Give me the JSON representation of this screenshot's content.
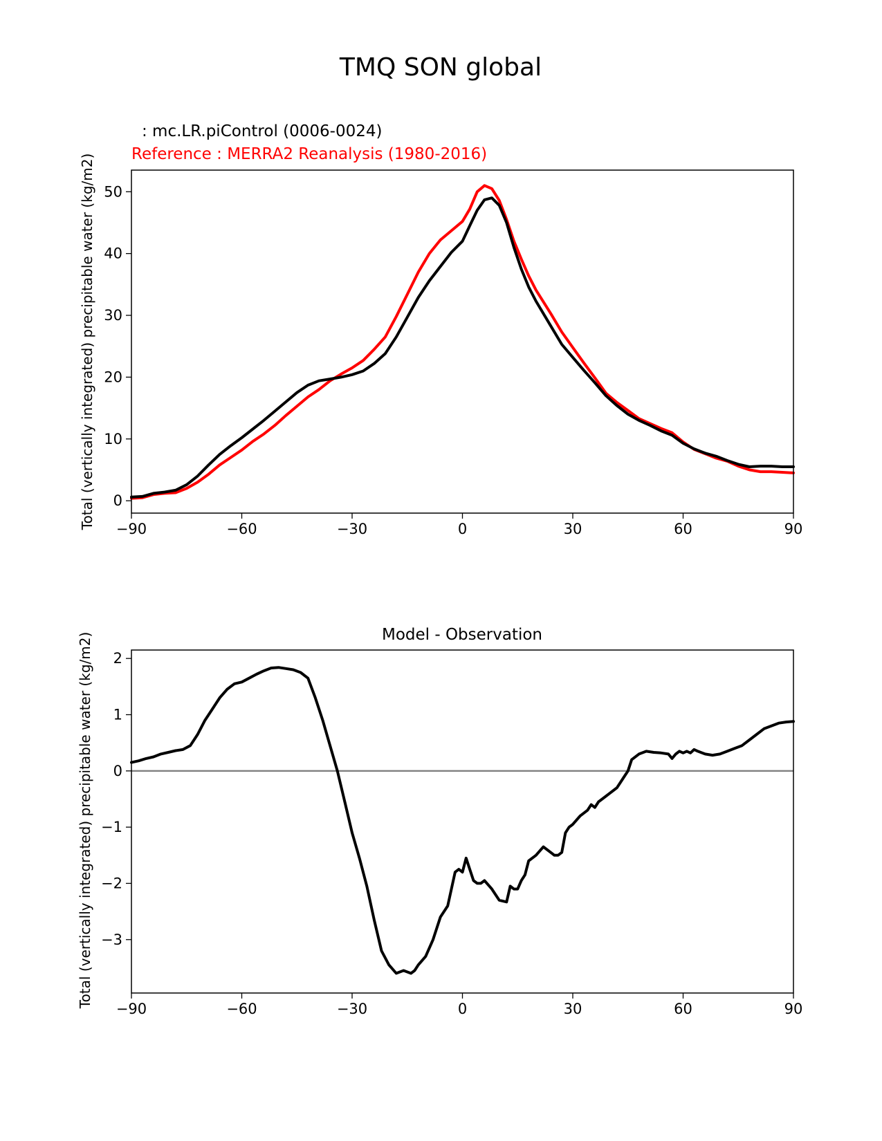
{
  "figure": {
    "suptitle": "TMQ SON global"
  },
  "chart_data": [
    {
      "type": "line",
      "title": "",
      "legend": [
        {
          "text": ": mc.LR.piControl (0006-0024)",
          "color": "#000000"
        },
        {
          "text": "Reference : MERRA2 Reanalysis (1980-2016)",
          "color": "#ff0000"
        }
      ],
      "xlabel": "",
      "ylabel": "Total (vertically integrated) precipitable water (kg/m2)",
      "xlim": [
        -90,
        90
      ],
      "ylim": [
        -2,
        53.5
      ],
      "xticks": [
        -90,
        -60,
        -30,
        0,
        30,
        60,
        90
      ],
      "xticklabels": [
        "−90",
        "−60",
        "−30",
        "0",
        "30",
        "60",
        "90"
      ],
      "yticks": [
        0,
        10,
        20,
        30,
        40,
        50
      ],
      "yticklabels": [
        "0",
        "10",
        "20",
        "30",
        "40",
        "50"
      ],
      "series": [
        {
          "name": "mc.LR.piControl (0006-0024)",
          "color": "#000000",
          "x": [
            -90,
            -87,
            -84,
            -81,
            -78,
            -75,
            -72,
            -69,
            -66,
            -63,
            -60,
            -57,
            -54,
            -51,
            -48,
            -45,
            -42,
            -39,
            -36,
            -33,
            -30,
            -27,
            -24,
            -21,
            -18,
            -15,
            -12,
            -9,
            -6,
            -3,
            0,
            2,
            4,
            6,
            8,
            10,
            12,
            14,
            16,
            18,
            20,
            24,
            27,
            30,
            33,
            36,
            39,
            42,
            45,
            48,
            51,
            54,
            57,
            60,
            63,
            66,
            69,
            72,
            75,
            78,
            81,
            84,
            87,
            90
          ],
          "y": [
            0.6,
            0.7,
            1.2,
            1.4,
            1.7,
            2.6,
            4.0,
            5.8,
            7.5,
            8.9,
            10.2,
            11.6,
            13.0,
            14.5,
            16.0,
            17.5,
            18.7,
            19.4,
            19.7,
            20.0,
            20.4,
            21.0,
            22.2,
            23.8,
            26.5,
            29.7,
            32.9,
            35.6,
            37.9,
            40.2,
            42.0,
            44.5,
            47.0,
            48.7,
            49.0,
            47.8,
            45.0,
            41.0,
            37.5,
            34.6,
            32.3,
            28.3,
            25.3,
            23.2,
            21.1,
            19.1,
            17.0,
            15.4,
            14.0,
            13.0,
            12.2,
            11.3,
            10.6,
            9.3,
            8.4,
            7.7,
            7.2,
            6.5,
            5.9,
            5.5,
            5.6,
            5.6,
            5.5,
            5.5
          ]
        },
        {
          "name": "Reference : MERRA2 Reanalysis (1980-2016)",
          "color": "#ff0000",
          "x": [
            -90,
            -87,
            -84,
            -81,
            -78,
            -75,
            -72,
            -69,
            -66,
            -63,
            -60,
            -57,
            -54,
            -51,
            -48,
            -45,
            -42,
            -39,
            -36,
            -33,
            -30,
            -27,
            -24,
            -21,
            -18,
            -15,
            -12,
            -9,
            -6,
            -3,
            0,
            2,
            4,
            6,
            8,
            10,
            12,
            14,
            16,
            18,
            20,
            24,
            27,
            30,
            33,
            36,
            39,
            42,
            45,
            48,
            51,
            54,
            57,
            60,
            63,
            66,
            69,
            72,
            75,
            78,
            81,
            84,
            87,
            90
          ],
          "y": [
            0.4,
            0.5,
            1.0,
            1.2,
            1.3,
            2.0,
            3.0,
            4.3,
            5.8,
            7.0,
            8.2,
            9.6,
            10.8,
            12.2,
            13.8,
            15.3,
            16.8,
            18.0,
            19.4,
            20.5,
            21.5,
            22.7,
            24.5,
            26.5,
            29.8,
            33.4,
            37.0,
            40.0,
            42.2,
            43.7,
            45.2,
            47.2,
            50.0,
            51.0,
            50.5,
            48.6,
            45.5,
            42.0,
            39.1,
            36.4,
            34.1,
            30.3,
            27.3,
            24.8,
            22.3,
            19.9,
            17.4,
            15.9,
            14.6,
            13.3,
            12.5,
            11.7,
            11.0,
            9.5,
            8.3,
            7.6,
            6.9,
            6.4,
            5.6,
            5.0,
            4.7,
            4.7,
            4.6,
            4.5
          ]
        }
      ]
    },
    {
      "type": "line",
      "title": "Model - Observation",
      "xlabel": "",
      "ylabel": "Total (vertically integrated) precipitable water (kg/m2)",
      "xlim": [
        -90,
        90
      ],
      "ylim": [
        -3.95,
        2.15
      ],
      "xticks": [
        -90,
        -60,
        -30,
        0,
        30,
        60,
        90
      ],
      "xticklabels": [
        "−90",
        "−60",
        "−30",
        "0",
        "30",
        "60",
        "90"
      ],
      "yticks": [
        -3,
        -2,
        -1,
        0,
        1,
        2
      ],
      "yticklabels": [
        "−3",
        "−2",
        "−1",
        "0",
        "1",
        "2"
      ],
      "reference_line": {
        "y": 0,
        "color": "#808080"
      },
      "series": [
        {
          "name": "Model - Observation",
          "color": "#000000",
          "x": [
            -90,
            -88,
            -86,
            -84,
            -82,
            -80,
            -78,
            -76,
            -74,
            -72,
            -70,
            -68,
            -66,
            -64,
            -62,
            -60,
            -58,
            -56,
            -54,
            -52,
            -50,
            -48,
            -46,
            -44,
            -42,
            -40,
            -38,
            -36,
            -34,
            -32,
            -30,
            -28,
            -26,
            -24,
            -22,
            -20,
            -18,
            -16,
            -14,
            -13,
            -12,
            -10,
            -8,
            -6,
            -4,
            -2,
            -1,
            0,
            1,
            2,
            3,
            4,
            5,
            6,
            8,
            10,
            12,
            13,
            14,
            15,
            16,
            17,
            18,
            20,
            22,
            24,
            25,
            26,
            27,
            28,
            29,
            30,
            32,
            34,
            35,
            36,
            37,
            38,
            39,
            40,
            42,
            43,
            44,
            45,
            46,
            48,
            50,
            52,
            54,
            56,
            57,
            58,
            59,
            60,
            61,
            62,
            63,
            64,
            66,
            68,
            70,
            72,
            74,
            76,
            78,
            80,
            82,
            84,
            86,
            88,
            90
          ],
          "y": [
            0.15,
            0.18,
            0.22,
            0.25,
            0.3,
            0.33,
            0.36,
            0.38,
            0.45,
            0.65,
            0.9,
            1.1,
            1.3,
            1.45,
            1.55,
            1.58,
            1.65,
            1.72,
            1.78,
            1.83,
            1.84,
            1.82,
            1.8,
            1.75,
            1.65,
            1.3,
            0.9,
            0.45,
            0.0,
            -0.55,
            -1.1,
            -1.55,
            -2.05,
            -2.65,
            -3.2,
            -3.45,
            -3.6,
            -3.55,
            -3.6,
            -3.55,
            -3.45,
            -3.3,
            -3.0,
            -2.6,
            -2.4,
            -1.8,
            -1.75,
            -1.8,
            -1.55,
            -1.75,
            -1.95,
            -2.0,
            -2.0,
            -1.95,
            -2.1,
            -2.3,
            -2.33,
            -2.05,
            -2.1,
            -2.1,
            -1.95,
            -1.85,
            -1.6,
            -1.5,
            -1.35,
            -1.45,
            -1.5,
            -1.5,
            -1.45,
            -1.1,
            -1.0,
            -0.95,
            -0.8,
            -0.7,
            -0.6,
            -0.65,
            -0.55,
            -0.5,
            -0.45,
            -0.4,
            -0.3,
            -0.2,
            -0.1,
            0.0,
            0.2,
            0.3,
            0.35,
            0.33,
            0.32,
            0.3,
            0.22,
            0.3,
            0.35,
            0.32,
            0.35,
            0.32,
            0.38,
            0.35,
            0.3,
            0.28,
            0.3,
            0.35,
            0.4,
            0.45,
            0.55,
            0.65,
            0.75,
            0.8,
            0.85,
            0.87,
            0.88
          ]
        }
      ]
    }
  ]
}
